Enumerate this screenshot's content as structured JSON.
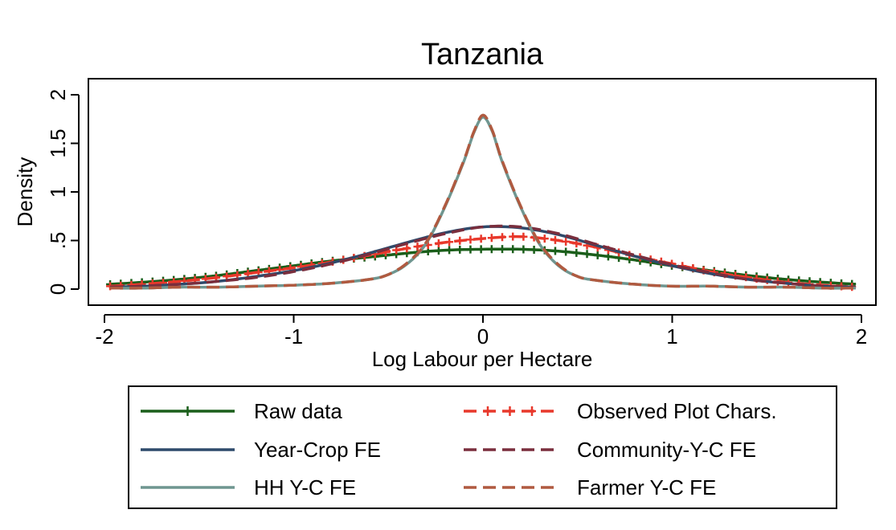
{
  "chart_data": {
    "type": "line",
    "title": "Tanzania",
    "xlabel": "Log Labour per Hectare",
    "ylabel": "Density",
    "xlim": [
      -2,
      2
    ],
    "ylim": [
      0,
      2
    ],
    "xticks": [
      {
        "v": -2,
        "label": "-2"
      },
      {
        "v": -1,
        "label": "-1"
      },
      {
        "v": 0,
        "label": "0"
      },
      {
        "v": 1,
        "label": "1"
      },
      {
        "v": 2,
        "label": "2"
      }
    ],
    "yticks": [
      {
        "v": 0,
        "label": "0"
      },
      {
        "v": 0.5,
        "label": ".5"
      },
      {
        "v": 1,
        "label": "1"
      },
      {
        "v": 1.5,
        "label": "1.5"
      },
      {
        "v": 2,
        "label": "2"
      }
    ],
    "grid": false,
    "legend_position": "bottom",
    "series": [
      {
        "name": "Raw data",
        "color": "#1a5e1a",
        "style": "solid-plus",
        "x": [
          -1.97,
          -1.8,
          -1.6,
          -1.4,
          -1.2,
          -1.0,
          -0.8,
          -0.6,
          -0.4,
          -0.2,
          0.0,
          0.2,
          0.4,
          0.6,
          0.8,
          1.0,
          1.2,
          1.4,
          1.6,
          1.8,
          1.97
        ],
        "y": [
          0.05,
          0.07,
          0.1,
          0.14,
          0.19,
          0.24,
          0.29,
          0.33,
          0.37,
          0.4,
          0.41,
          0.41,
          0.39,
          0.35,
          0.3,
          0.24,
          0.19,
          0.14,
          0.1,
          0.07,
          0.05
        ]
      },
      {
        "name": "Observed Plot Chars.",
        "color": "#e8382b",
        "style": "dash-plus",
        "x": [
          -1.97,
          -1.8,
          -1.6,
          -1.4,
          -1.2,
          -1.0,
          -0.8,
          -0.6,
          -0.4,
          -0.2,
          0.0,
          0.2,
          0.4,
          0.6,
          0.8,
          1.0,
          1.2,
          1.4,
          1.6,
          1.8,
          1.97
        ],
        "y": [
          0.03,
          0.05,
          0.08,
          0.12,
          0.17,
          0.22,
          0.28,
          0.35,
          0.42,
          0.48,
          0.52,
          0.54,
          0.5,
          0.43,
          0.34,
          0.26,
          0.18,
          0.12,
          0.07,
          0.04,
          0.02
        ]
      },
      {
        "name": "Year-Crop FE",
        "color": "#2e4a6b",
        "style": "solid",
        "x": [
          -1.97,
          -1.8,
          -1.6,
          -1.4,
          -1.2,
          -1.0,
          -0.8,
          -0.6,
          -0.4,
          -0.2,
          0.0,
          0.2,
          0.4,
          0.6,
          0.8,
          1.0,
          1.2,
          1.4,
          1.6,
          1.8,
          1.97
        ],
        "y": [
          0.02,
          0.03,
          0.05,
          0.08,
          0.13,
          0.19,
          0.27,
          0.37,
          0.48,
          0.58,
          0.64,
          0.63,
          0.56,
          0.45,
          0.34,
          0.24,
          0.16,
          0.1,
          0.06,
          0.03,
          0.02
        ]
      },
      {
        "name": "Community-Y-C FE",
        "color": "#7a2e3d",
        "style": "dash",
        "x": [
          -1.97,
          -1.8,
          -1.6,
          -1.4,
          -1.2,
          -1.0,
          -0.8,
          -0.6,
          -0.4,
          -0.2,
          0.0,
          0.2,
          0.4,
          0.6,
          0.8,
          1.0,
          1.2,
          1.4,
          1.6,
          1.8,
          1.97
        ],
        "y": [
          0.02,
          0.03,
          0.05,
          0.08,
          0.12,
          0.18,
          0.26,
          0.36,
          0.47,
          0.57,
          0.64,
          0.64,
          0.57,
          0.46,
          0.35,
          0.25,
          0.17,
          0.1,
          0.06,
          0.03,
          0.02
        ]
      },
      {
        "name": "HH Y-C FE",
        "color": "#6f9690",
        "style": "solid",
        "x": [
          -1.97,
          -1.8,
          -1.6,
          -1.4,
          -1.2,
          -1.0,
          -0.8,
          -0.6,
          -0.5,
          -0.4,
          -0.3,
          -0.2,
          -0.1,
          -0.05,
          0.0,
          0.05,
          0.1,
          0.2,
          0.3,
          0.4,
          0.5,
          0.6,
          0.8,
          1.0,
          1.2,
          1.4,
          1.6,
          1.8,
          1.97
        ],
        "y": [
          0.01,
          0.01,
          0.02,
          0.02,
          0.03,
          0.04,
          0.06,
          0.1,
          0.15,
          0.26,
          0.47,
          0.85,
          1.32,
          1.6,
          1.77,
          1.62,
          1.32,
          0.84,
          0.46,
          0.24,
          0.13,
          0.09,
          0.05,
          0.03,
          0.03,
          0.02,
          0.02,
          0.01,
          0.01
        ]
      },
      {
        "name": "Farmer Y-C FE",
        "color": "#b05a40",
        "style": "dash",
        "x": [
          -1.97,
          -1.8,
          -1.6,
          -1.4,
          -1.2,
          -1.0,
          -0.8,
          -0.6,
          -0.5,
          -0.4,
          -0.3,
          -0.2,
          -0.1,
          -0.05,
          0.0,
          0.05,
          0.1,
          0.2,
          0.3,
          0.4,
          0.5,
          0.6,
          0.8,
          1.0,
          1.2,
          1.4,
          1.6,
          1.8,
          1.97
        ],
        "y": [
          0.01,
          0.01,
          0.02,
          0.02,
          0.03,
          0.04,
          0.06,
          0.1,
          0.15,
          0.27,
          0.48,
          0.86,
          1.33,
          1.61,
          1.79,
          1.63,
          1.33,
          0.85,
          0.47,
          0.25,
          0.13,
          0.09,
          0.05,
          0.03,
          0.03,
          0.02,
          0.02,
          0.01,
          0.01
        ]
      }
    ],
    "legend": [
      {
        "label": "Raw data",
        "series": 0
      },
      {
        "label": "Observed Plot Chars.",
        "series": 1
      },
      {
        "label": "Year-Crop FE",
        "series": 2
      },
      {
        "label": "Community-Y-C FE",
        "series": 3
      },
      {
        "label": "HH Y-C FE",
        "series": 4
      },
      {
        "label": "Farmer Y-C FE",
        "series": 5
      }
    ]
  }
}
